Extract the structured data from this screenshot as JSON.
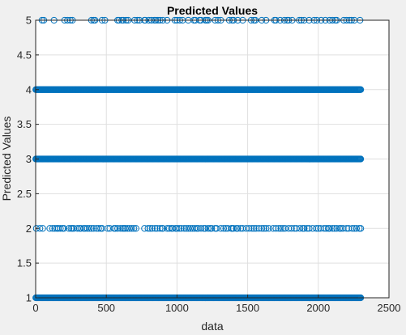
{
  "chart_data": {
    "type": "scatter",
    "title": "Predicted Values",
    "xlabel": "data",
    "ylabel": "Predicted Values",
    "xlim": [
      0,
      2500
    ],
    "ylim": [
      1,
      5
    ],
    "xticks": [
      "0",
      "500",
      "1000",
      "1500",
      "2000",
      "2500"
    ],
    "yticks": [
      "1",
      "1.5",
      "2",
      "2.5",
      "3",
      "3.5",
      "4",
      "4.5",
      "5"
    ],
    "grid": true,
    "marker": "circle-open",
    "color": "#0072bd",
    "x_start": 1,
    "x_end": 2300,
    "series": [
      {
        "y": 5,
        "x": [
          45,
          58,
          130,
          205,
          225,
          245,
          260,
          395,
          410,
          420,
          470,
          490,
          580,
          590,
          610,
          620,
          640,
          655,
          700,
          720,
          735,
          770,
          775,
          800,
          820,
          840,
          850,
          865,
          880,
          900,
          930,
          985,
          1000,
          1020,
          1040,
          1080,
          1120,
          1130,
          1160,
          1170,
          1200,
          1210,
          1220,
          1270,
          1290,
          1310,
          1370,
          1390,
          1400,
          1430,
          1465,
          1525,
          1545,
          1555,
          1600,
          1630,
          1690,
          1700,
          1730,
          1760,
          1780,
          1790,
          1815,
          1865,
          1880,
          1900,
          1935,
          1970,
          1990,
          2020,
          2050,
          2080,
          2100,
          2120,
          2130,
          2180,
          2200,
          2220,
          2235,
          2255,
          2295
        ]
      },
      {
        "y": 2,
        "x": [
          5,
          30,
          50,
          100,
          120,
          135,
          150,
          160,
          175,
          190,
          200,
          235,
          250,
          260,
          270,
          295,
          310,
          320,
          340,
          350,
          365,
          380,
          395,
          410,
          430,
          445,
          460,
          470,
          510,
          525,
          555,
          565,
          580,
          600,
          615,
          625,
          635,
          650,
          665,
          680,
          695,
          710,
          770,
          795,
          810,
          825,
          845,
          860,
          880,
          895,
          900,
          930,
          945,
          960,
          970,
          990,
          1000,
          1015,
          1030,
          1050,
          1065,
          1080,
          1095,
          1110,
          1125,
          1140,
          1150,
          1170,
          1190,
          1200,
          1220,
          1235,
          1245,
          1270,
          1280,
          1310,
          1330,
          1345,
          1360,
          1385,
          1390,
          1400,
          1420,
          1430,
          1450,
          1465,
          1490,
          1510,
          1530,
          1545,
          1560,
          1580,
          1600,
          1615,
          1630,
          1650,
          1680,
          1700,
          1720,
          1735,
          1750,
          1765,
          1790,
          1810,
          1830,
          1845,
          1870,
          1890,
          1900,
          1920,
          1935,
          1960,
          1985,
          2000,
          2015,
          2040,
          2055,
          2070,
          2080,
          2100,
          2115,
          2130,
          2150,
          2160,
          2175,
          2200,
          2215,
          2240,
          2255,
          2270,
          2290,
          2300
        ]
      }
    ],
    "dense_series": [
      {
        "y": 4,
        "x_range": [
          1,
          2300
        ]
      },
      {
        "y": 3,
        "x_range": [
          1,
          2300
        ]
      },
      {
        "y": 1,
        "x_range": [
          1,
          2300
        ]
      }
    ]
  }
}
